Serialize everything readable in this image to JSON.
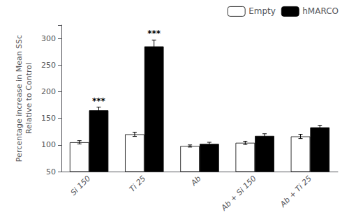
{
  "chart_data": {
    "type": "bar",
    "categories": [
      "Si 150",
      "Ti 25",
      "Ab",
      "Ab + Si 150",
      "Ab + Ti 25"
    ],
    "series": [
      {
        "name": "Empty",
        "color": "#ffffff",
        "values": [
          105,
          120,
          98,
          104,
          116
        ],
        "errors": [
          3,
          4,
          2,
          3,
          4
        ]
      },
      {
        "name": "hMARCO",
        "color": "#000000",
        "values": [
          165,
          285,
          102,
          117,
          133
        ],
        "errors": [
          6,
          12,
          3,
          4,
          4
        ]
      }
    ],
    "ylabel": "Percentage increase in Mean SSc\nRelative to Control",
    "ylim": [
      50,
      325
    ],
    "yticks": [
      50,
      100,
      150,
      200,
      250,
      300
    ],
    "grid": false,
    "legend": "upper right",
    "annotations": [
      {
        "text": "***",
        "category": "Si 150",
        "series": "hMARCO"
      },
      {
        "text": "***",
        "category": "Ti 25",
        "series": "hMARCO"
      }
    ]
  }
}
